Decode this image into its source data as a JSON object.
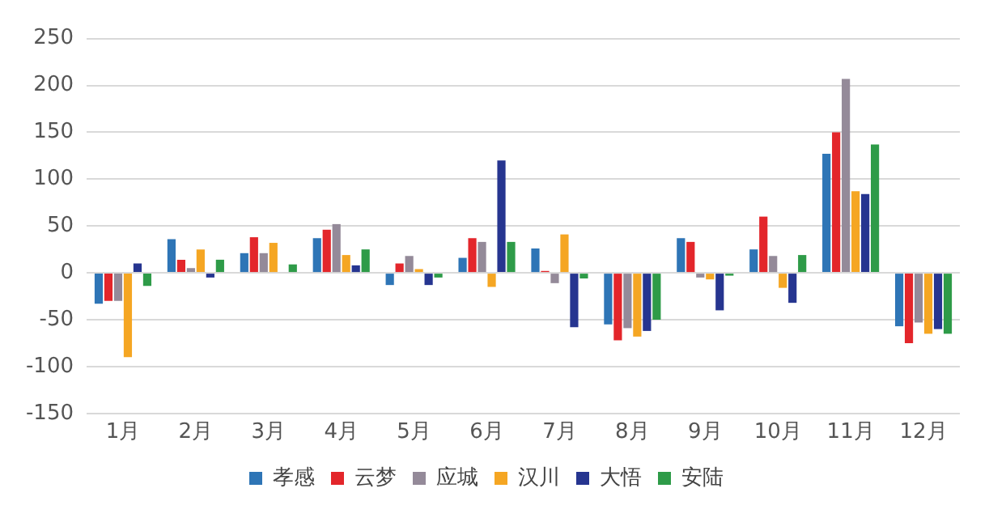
{
  "chart_data": {
    "type": "bar",
    "categories": [
      "1月",
      "2月",
      "3月",
      "4月",
      "5月",
      "6月",
      "7月",
      "8月",
      "9月",
      "10月",
      "11月",
      "12月"
    ],
    "series": [
      {
        "name": "孝感",
        "color": "#2e75b6",
        "values": [
          -33,
          36,
          21,
          37,
          -13,
          16,
          26,
          -55,
          37,
          25,
          127,
          -57
        ]
      },
      {
        "name": "云梦",
        "color": "#e3262b",
        "values": [
          -30,
          14,
          38,
          46,
          10,
          37,
          2,
          -72,
          33,
          60,
          150,
          -75
        ]
      },
      {
        "name": "应城",
        "color": "#948a99",
        "values": [
          -30,
          5,
          21,
          52,
          18,
          33,
          -11,
          -59,
          -5,
          18,
          207,
          -53
        ]
      },
      {
        "name": "汉川",
        "color": "#f5a623",
        "values": [
          -90,
          25,
          32,
          19,
          4,
          -15,
          41,
          -68,
          -7,
          -16,
          87,
          -65
        ]
      },
      {
        "name": "大悟",
        "color": "#263590",
        "values": [
          10,
          -5,
          0,
          8,
          -13,
          120,
          -58,
          -62,
          -40,
          -32,
          84,
          -60
        ]
      },
      {
        "name": "安陆",
        "color": "#2e9b48",
        "values": [
          -14,
          14,
          9,
          25,
          -5,
          33,
          -6,
          -50,
          -3,
          19,
          137,
          -65
        ]
      }
    ],
    "ylim": [
      -150,
      250
    ],
    "yticks": [
      -150,
      -100,
      -50,
      0,
      50,
      100,
      150,
      200,
      250
    ],
    "grid": "y",
    "legend": "bottom"
  }
}
